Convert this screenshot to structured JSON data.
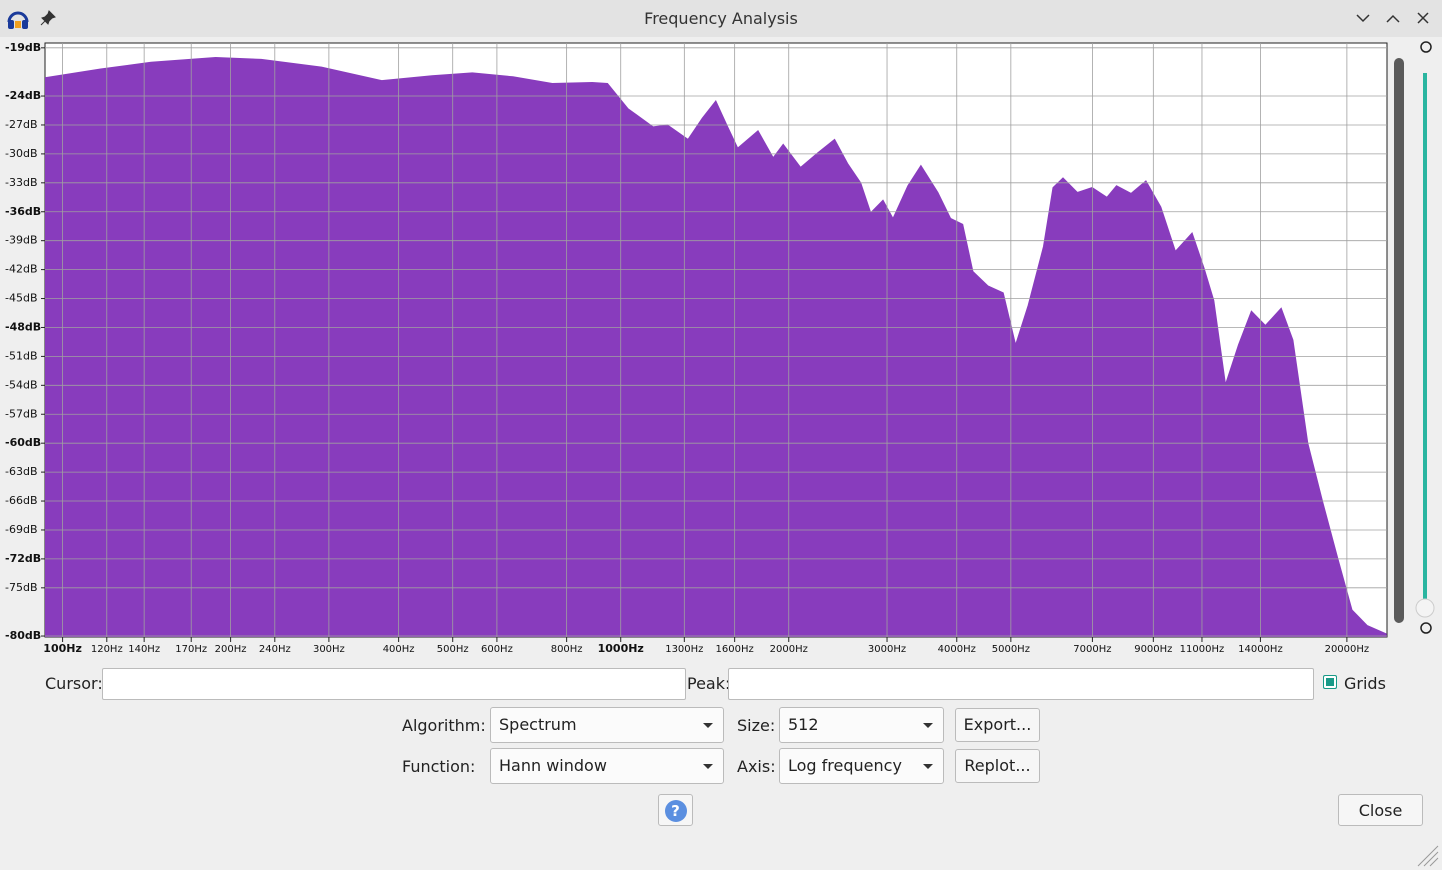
{
  "window": {
    "title": "Frequency Analysis"
  },
  "chart_data": {
    "type": "area",
    "xscale": "log",
    "grid": true,
    "color": "#883cbd",
    "x": [
      93,
      117,
      144,
      188,
      227,
      291,
      373,
      459,
      542,
      641,
      754,
      889,
      947,
      1030,
      1143,
      1213,
      1320,
      1400,
      1480,
      1555,
      1620,
      1762,
      1876,
      1955,
      2100,
      2254,
      2417,
      2550,
      2691,
      2805,
      2950,
      3075,
      3270,
      3450,
      3700,
      3900,
      4100,
      4275,
      4550,
      4845,
      5100,
      5370,
      5720,
      5950,
      6200,
      6580,
      6990,
      7430,
      7730,
      8210,
      8730,
      9280,
      9860,
      10560,
      11100,
      11550,
      12120,
      12790,
      13490,
      14290,
      15250,
      16010,
      17020,
      18100,
      19230,
      20430,
      21730,
      23570
    ],
    "values": [
      -22.1,
      -21.2,
      -20.5,
      -20.0,
      -20.2,
      -21.0,
      -22.4,
      -21.9,
      -21.6,
      -22.0,
      -22.7,
      -22.6,
      -22.7,
      -25.3,
      -27.2,
      -27.0,
      -28.5,
      -26.3,
      -24.5,
      -27.2,
      -29.4,
      -27.6,
      -30.4,
      -29.0,
      -31.4,
      -29.9,
      -28.5,
      -31.0,
      -33.0,
      -36.1,
      -34.8,
      -36.7,
      -33.3,
      -31.2,
      -34.0,
      -36.7,
      -37.3,
      -42.2,
      -43.7,
      -44.4,
      -49.8,
      -45.7,
      -39.6,
      -33.5,
      -32.5,
      -34.0,
      -33.5,
      -34.5,
      -33.3,
      -34.1,
      -32.8,
      -35.5,
      -40.1,
      -38.2,
      -41.9,
      -45.2,
      -53.9,
      -49.8,
      -46.3,
      -47.8,
      -46.0,
      -49.3,
      -60.0,
      -66.1,
      -71.8,
      -77.3,
      -78.9,
      -79.8
    ],
    "xlim": [
      93,
      23600
    ],
    "xticks": [
      {
        "value": 100,
        "label": "100Hz"
      },
      {
        "value": 120,
        "label": "120Hz"
      },
      {
        "value": 140,
        "label": "140Hz"
      },
      {
        "value": 170,
        "label": "170Hz"
      },
      {
        "value": 200,
        "label": "200Hz"
      },
      {
        "value": 240,
        "label": "240Hz"
      },
      {
        "value": 300,
        "label": "300Hz"
      },
      {
        "value": 400,
        "label": "400Hz"
      },
      {
        "value": 500,
        "label": "500Hz"
      },
      {
        "value": 600,
        "label": "600Hz"
      },
      {
        "value": 800,
        "label": "800Hz"
      },
      {
        "value": 1000,
        "label": "1000Hz"
      },
      {
        "value": 1300,
        "label": "1300Hz"
      },
      {
        "value": 1600,
        "label": "1600Hz"
      },
      {
        "value": 2000,
        "label": "2000Hz"
      },
      {
        "value": 3000,
        "label": "3000Hz"
      },
      {
        "value": 4000,
        "label": "4000Hz"
      },
      {
        "value": 5000,
        "label": "5000Hz"
      },
      {
        "value": 7000,
        "label": "7000Hz"
      },
      {
        "value": 9000,
        "label": "9000Hz"
      },
      {
        "value": 11000,
        "label": "11000Hz"
      },
      {
        "value": 14000,
        "label": "14000Hz"
      },
      {
        "value": 20000,
        "label": "20000Hz"
      }
    ],
    "ylim": [
      -80.1,
      -18.5
    ],
    "yticks": [
      {
        "value": -19,
        "label": "-19dB"
      },
      {
        "value": -24,
        "label": "-24dB"
      },
      {
        "value": -27,
        "label": "-27dB"
      },
      {
        "value": -30,
        "label": "-30dB"
      },
      {
        "value": -33,
        "label": "-33dB"
      },
      {
        "value": -36,
        "label": "-36dB"
      },
      {
        "value": -39,
        "label": "-39dB"
      },
      {
        "value": -42,
        "label": "-42dB"
      },
      {
        "value": -45,
        "label": "-45dB"
      },
      {
        "value": -48,
        "label": "-48dB"
      },
      {
        "value": -51,
        "label": "-51dB"
      },
      {
        "value": -54,
        "label": "-54dB"
      },
      {
        "value": -57,
        "label": "-57dB"
      },
      {
        "value": -60,
        "label": "-60dB"
      },
      {
        "value": -63,
        "label": "-63dB"
      },
      {
        "value": -66,
        "label": "-66dB"
      },
      {
        "value": -69,
        "label": "-69dB"
      },
      {
        "value": -72,
        "label": "-72dB"
      },
      {
        "value": -75,
        "label": "-75dB"
      },
      {
        "value": -80,
        "label": "-80dB"
      }
    ]
  },
  "controls": {
    "cursor_label": "Cursor:",
    "peak_label": "Peak:",
    "grids_label": "Grids",
    "grids_checked": true,
    "algorithm_label": "Algorithm:",
    "algorithm": "Spectrum",
    "size_label": "Size:",
    "size": "512",
    "export": "Export...",
    "function_label": "Function:",
    "function": "Hann window",
    "axis_label": "Axis:",
    "axis": "Log frequency",
    "replot": "Replot...",
    "help": "?",
    "close": "Close"
  }
}
